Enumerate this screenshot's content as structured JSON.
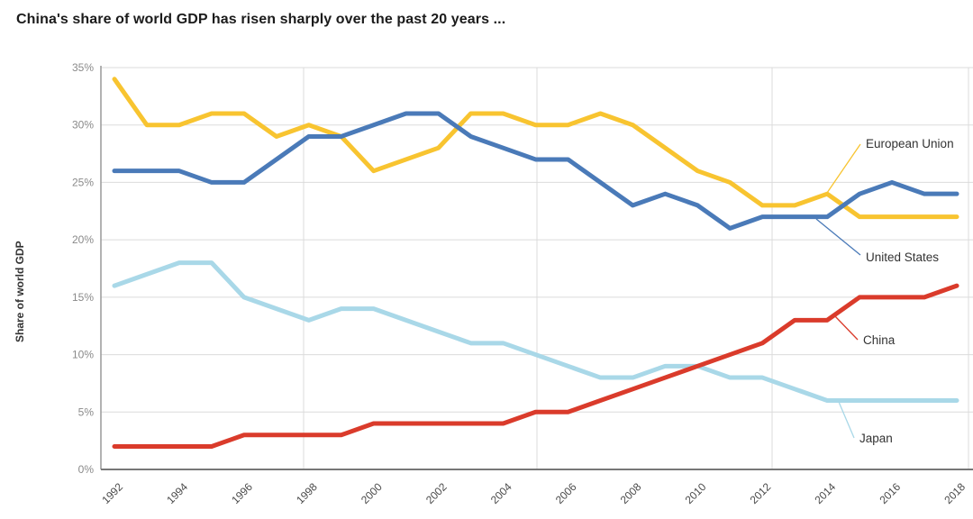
{
  "page": {
    "title": "China's share of world GDP has risen sharply over the past 20 years ..."
  },
  "chart": {
    "ylabel": "Share of world GDP",
    "background": "#FFFFFF",
    "grid_color": "#DBDBDB",
    "axis_color": "#808080",
    "y_tick_color": "#8A8A8A",
    "x_tick_color": "#4A4A4A",
    "label_text_color": "#333333"
  },
  "chart_data": {
    "type": "line",
    "title": "China's share of world GDP has risen sharply over the past 20 years ...",
    "xlabel": "",
    "ylabel": "Share of world GDP",
    "x": [
      1992,
      1993,
      1994,
      1995,
      1996,
      1997,
      1998,
      1999,
      2000,
      2001,
      2002,
      2003,
      2004,
      2005,
      2006,
      2007,
      2008,
      2009,
      2010,
      2011,
      2012,
      2013,
      2014,
      2015,
      2016,
      2017,
      2018
    ],
    "x_tick_labels": [
      "1992",
      "1994",
      "1996",
      "1998",
      "2000",
      "2002",
      "2004",
      "2006",
      "2008",
      "2010",
      "2012",
      "2014",
      "2016",
      "2018"
    ],
    "y_ticks": [
      0,
      5,
      10,
      15,
      20,
      25,
      30,
      35
    ],
    "y_tick_suffix": "%",
    "ylim": [
      0,
      35
    ],
    "grid": {
      "horizontal": true,
      "vertical_at_years": [
        1998,
        2005,
        2012
      ]
    },
    "legend_position": "end-of-line-labels",
    "series": [
      {
        "name": "European Union",
        "color": "#F8C430",
        "values": [
          34,
          30,
          30,
          31,
          31,
          29,
          30,
          29,
          26,
          27,
          28,
          31,
          31,
          30,
          30,
          31,
          30,
          28,
          26,
          25,
          23,
          23,
          24,
          22,
          22,
          22,
          22
        ]
      },
      {
        "name": "United States",
        "color": "#4A7AB8",
        "values": [
          26,
          26,
          26,
          25,
          25,
          27,
          29,
          29,
          30,
          31,
          31,
          29,
          28,
          27,
          27,
          25,
          23,
          24,
          23,
          21,
          22,
          22,
          22,
          24,
          25,
          24,
          24
        ]
      },
      {
        "name": "China",
        "color": "#DA3B2B",
        "values": [
          2,
          2,
          2,
          2,
          3,
          3,
          3,
          3,
          4,
          4,
          4,
          4,
          4,
          5,
          5,
          6,
          7,
          8,
          9,
          10,
          11,
          13,
          13,
          15,
          15,
          15,
          16
        ]
      },
      {
        "name": "Japan",
        "color": "#A9D8E8",
        "values": [
          16,
          17,
          18,
          18,
          15,
          14,
          13,
          14,
          14,
          13,
          12,
          11,
          11,
          10,
          9,
          8,
          8,
          9,
          9,
          8,
          8,
          7,
          6,
          6,
          6,
          6,
          6
        ]
      }
    ]
  }
}
